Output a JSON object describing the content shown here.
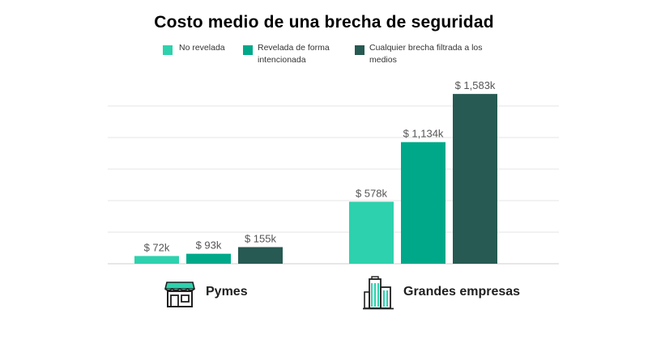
{
  "chart_data": {
    "type": "bar",
    "title": "Costo medio de una brecha de seguridad",
    "categories": [
      "Pymes",
      "Grandes empresas"
    ],
    "series": [
      {
        "name": "No revelada",
        "values": [
          72,
          578
        ],
        "labels": [
          "$ 72k",
          "$ 578k"
        ],
        "color": "#2ed1ad"
      },
      {
        "name": "Revelada de forma intencionada",
        "values": [
          93,
          1134
        ],
        "labels": [
          "$ 93k",
          "$ 1,134k"
        ],
        "color": "#00a88a"
      },
      {
        "name": "Cualquier brecha filtrada a los medios",
        "values": [
          155,
          1583
        ],
        "labels": [
          "$ 155k",
          "$ 1,583k"
        ],
        "color": "#265a52"
      }
    ],
    "unit": "k USD",
    "ylim": [
      0,
      1750
    ],
    "grid": true,
    "legend_position": "top"
  },
  "legend": [
    {
      "line1": "No revelada",
      "line2": ""
    },
    {
      "line1": "Revelada de forma",
      "line2": "intencionada"
    },
    {
      "line1": "Cualquier brecha filtrada a los",
      "line2": "medios"
    }
  ],
  "icons": {
    "pymes": "storefront-icon",
    "grandes": "office-buildings-icon"
  }
}
